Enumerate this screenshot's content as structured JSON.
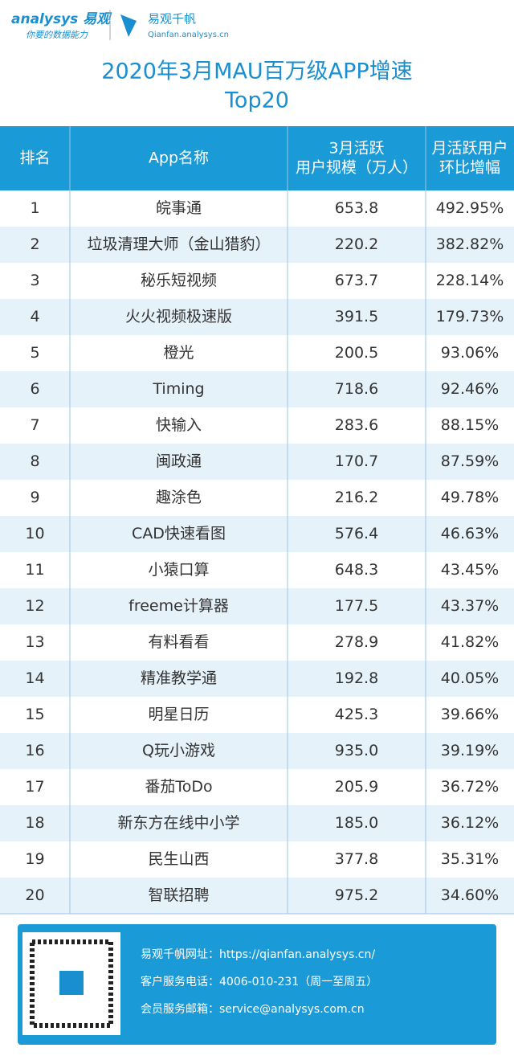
{
  "logo": {
    "brand": "analysys 易观",
    "slogan": "你要的数据能力",
    "product": "易观千帆",
    "site": "Qianfan.analysys.cn"
  },
  "title": [
    "2020年3月MAU百万级APP增速",
    "Top20"
  ],
  "table": {
    "header": [
      [
        "排名"
      ],
      [
        "App名称"
      ],
      [
        "3月活跃",
        "用户规模（万人）"
      ],
      [
        "月活跃用户",
        "环比增幅"
      ]
    ],
    "rows": [
      [
        "1",
        "皖事通",
        "653.8",
        "492.95%"
      ],
      [
        "2",
        "垃圾清理大师（金山猎豹）",
        "220.2",
        "382.82%"
      ],
      [
        "3",
        "秘乐短视频",
        "673.7",
        "228.14%"
      ],
      [
        "4",
        "火火视频极速版",
        "391.5",
        "179.73%"
      ],
      [
        "5",
        "橙光",
        "200.5",
        "93.06%"
      ],
      [
        "6",
        "Timing",
        "718.6",
        "92.46%"
      ],
      [
        "7",
        "快输入",
        "283.6",
        "88.15%"
      ],
      [
        "8",
        "闽政通",
        "170.7",
        "87.59%"
      ],
      [
        "9",
        "趣涂色",
        "216.2",
        "49.78%"
      ],
      [
        "10",
        "CAD快速看图",
        "576.4",
        "46.63%"
      ],
      [
        "11",
        "小猿口算",
        "648.3",
        "43.45%"
      ],
      [
        "12",
        "freeme计算器",
        "177.5",
        "43.37%"
      ],
      [
        "13",
        "有料看看",
        "278.9",
        "41.82%"
      ],
      [
        "14",
        "精准教学通",
        "192.8",
        "40.05%"
      ],
      [
        "15",
        "明星日历",
        "425.3",
        "39.66%"
      ],
      [
        "16",
        "Q玩小游戏",
        "935.0",
        "39.19%"
      ],
      [
        "17",
        "番茄ToDo",
        "205.9",
        "36.72%"
      ],
      [
        "18",
        "新东方在线中小学",
        "185.0",
        "36.12%"
      ],
      [
        "19",
        "民生山西",
        "377.8",
        "35.31%"
      ],
      [
        "20",
        "智联招聘",
        "975.2",
        "34.60%"
      ]
    ]
  },
  "footer": [
    "易观千帆网址：https://qianfan.analysys.cn/",
    "客户服务电话：4006-010-231（周一至周五）",
    "会员服务邮箱：service@analysys.com.cn"
  ]
}
